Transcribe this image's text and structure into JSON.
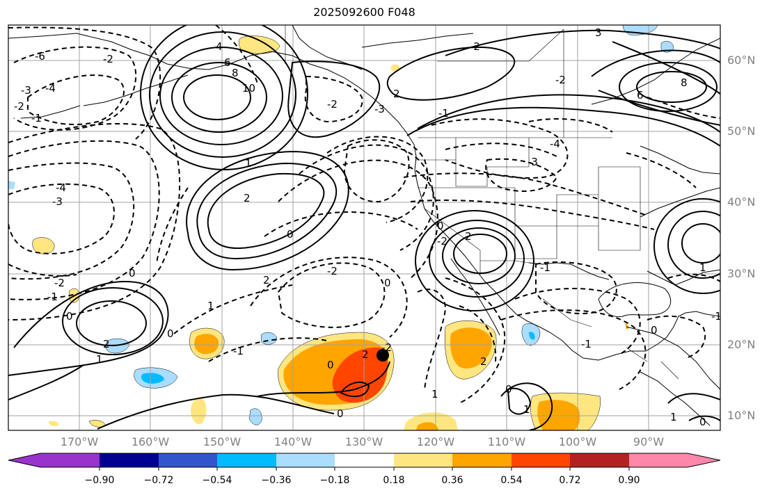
{
  "title": "2025092600 F048",
  "map": {
    "lat_labels": [
      "60°N",
      "50°N",
      "40°N",
      "30°N",
      "20°N",
      "10°N"
    ],
    "lon_labels": [
      "170°W",
      "160°W",
      "150°W",
      "140°W",
      "130°W",
      "120°W",
      "110°W",
      "100°W",
      "90°W"
    ],
    "contour_labels": [
      "-2",
      "-1",
      "-2",
      "-3",
      "-4",
      "-6",
      "4",
      "6",
      "8",
      "10",
      "1",
      "2",
      "0",
      "0",
      "-1",
      "-2",
      "-3",
      "-4",
      "2",
      "1",
      "0",
      "0",
      "-2",
      "0",
      "2",
      "-2",
      "2",
      "-1",
      "1",
      "0",
      "-1",
      "-2",
      "2",
      "0",
      "-3",
      "-4",
      "-2",
      "3",
      "6",
      "8",
      "-2",
      "-3",
      "2",
      "1",
      "0",
      "2",
      "-2",
      "-1",
      "1",
      "0",
      "0",
      "-1",
      "1",
      "0",
      "1",
      "-1"
    ]
  },
  "colorbar": {
    "ticks": [
      "−0.90",
      "−0.72",
      "−0.54",
      "−0.36",
      "−0.18",
      "0.18",
      "0.36",
      "0.54",
      "0.72",
      "0.90"
    ],
    "colors": [
      "#9933cc",
      "#000090",
      "#3355cc",
      "#00bbff",
      "#aaddff",
      "#ffffff",
      "#ffe680",
      "#ffa500",
      "#ff4500",
      "#b22222",
      "#ff88aa"
    ]
  }
}
